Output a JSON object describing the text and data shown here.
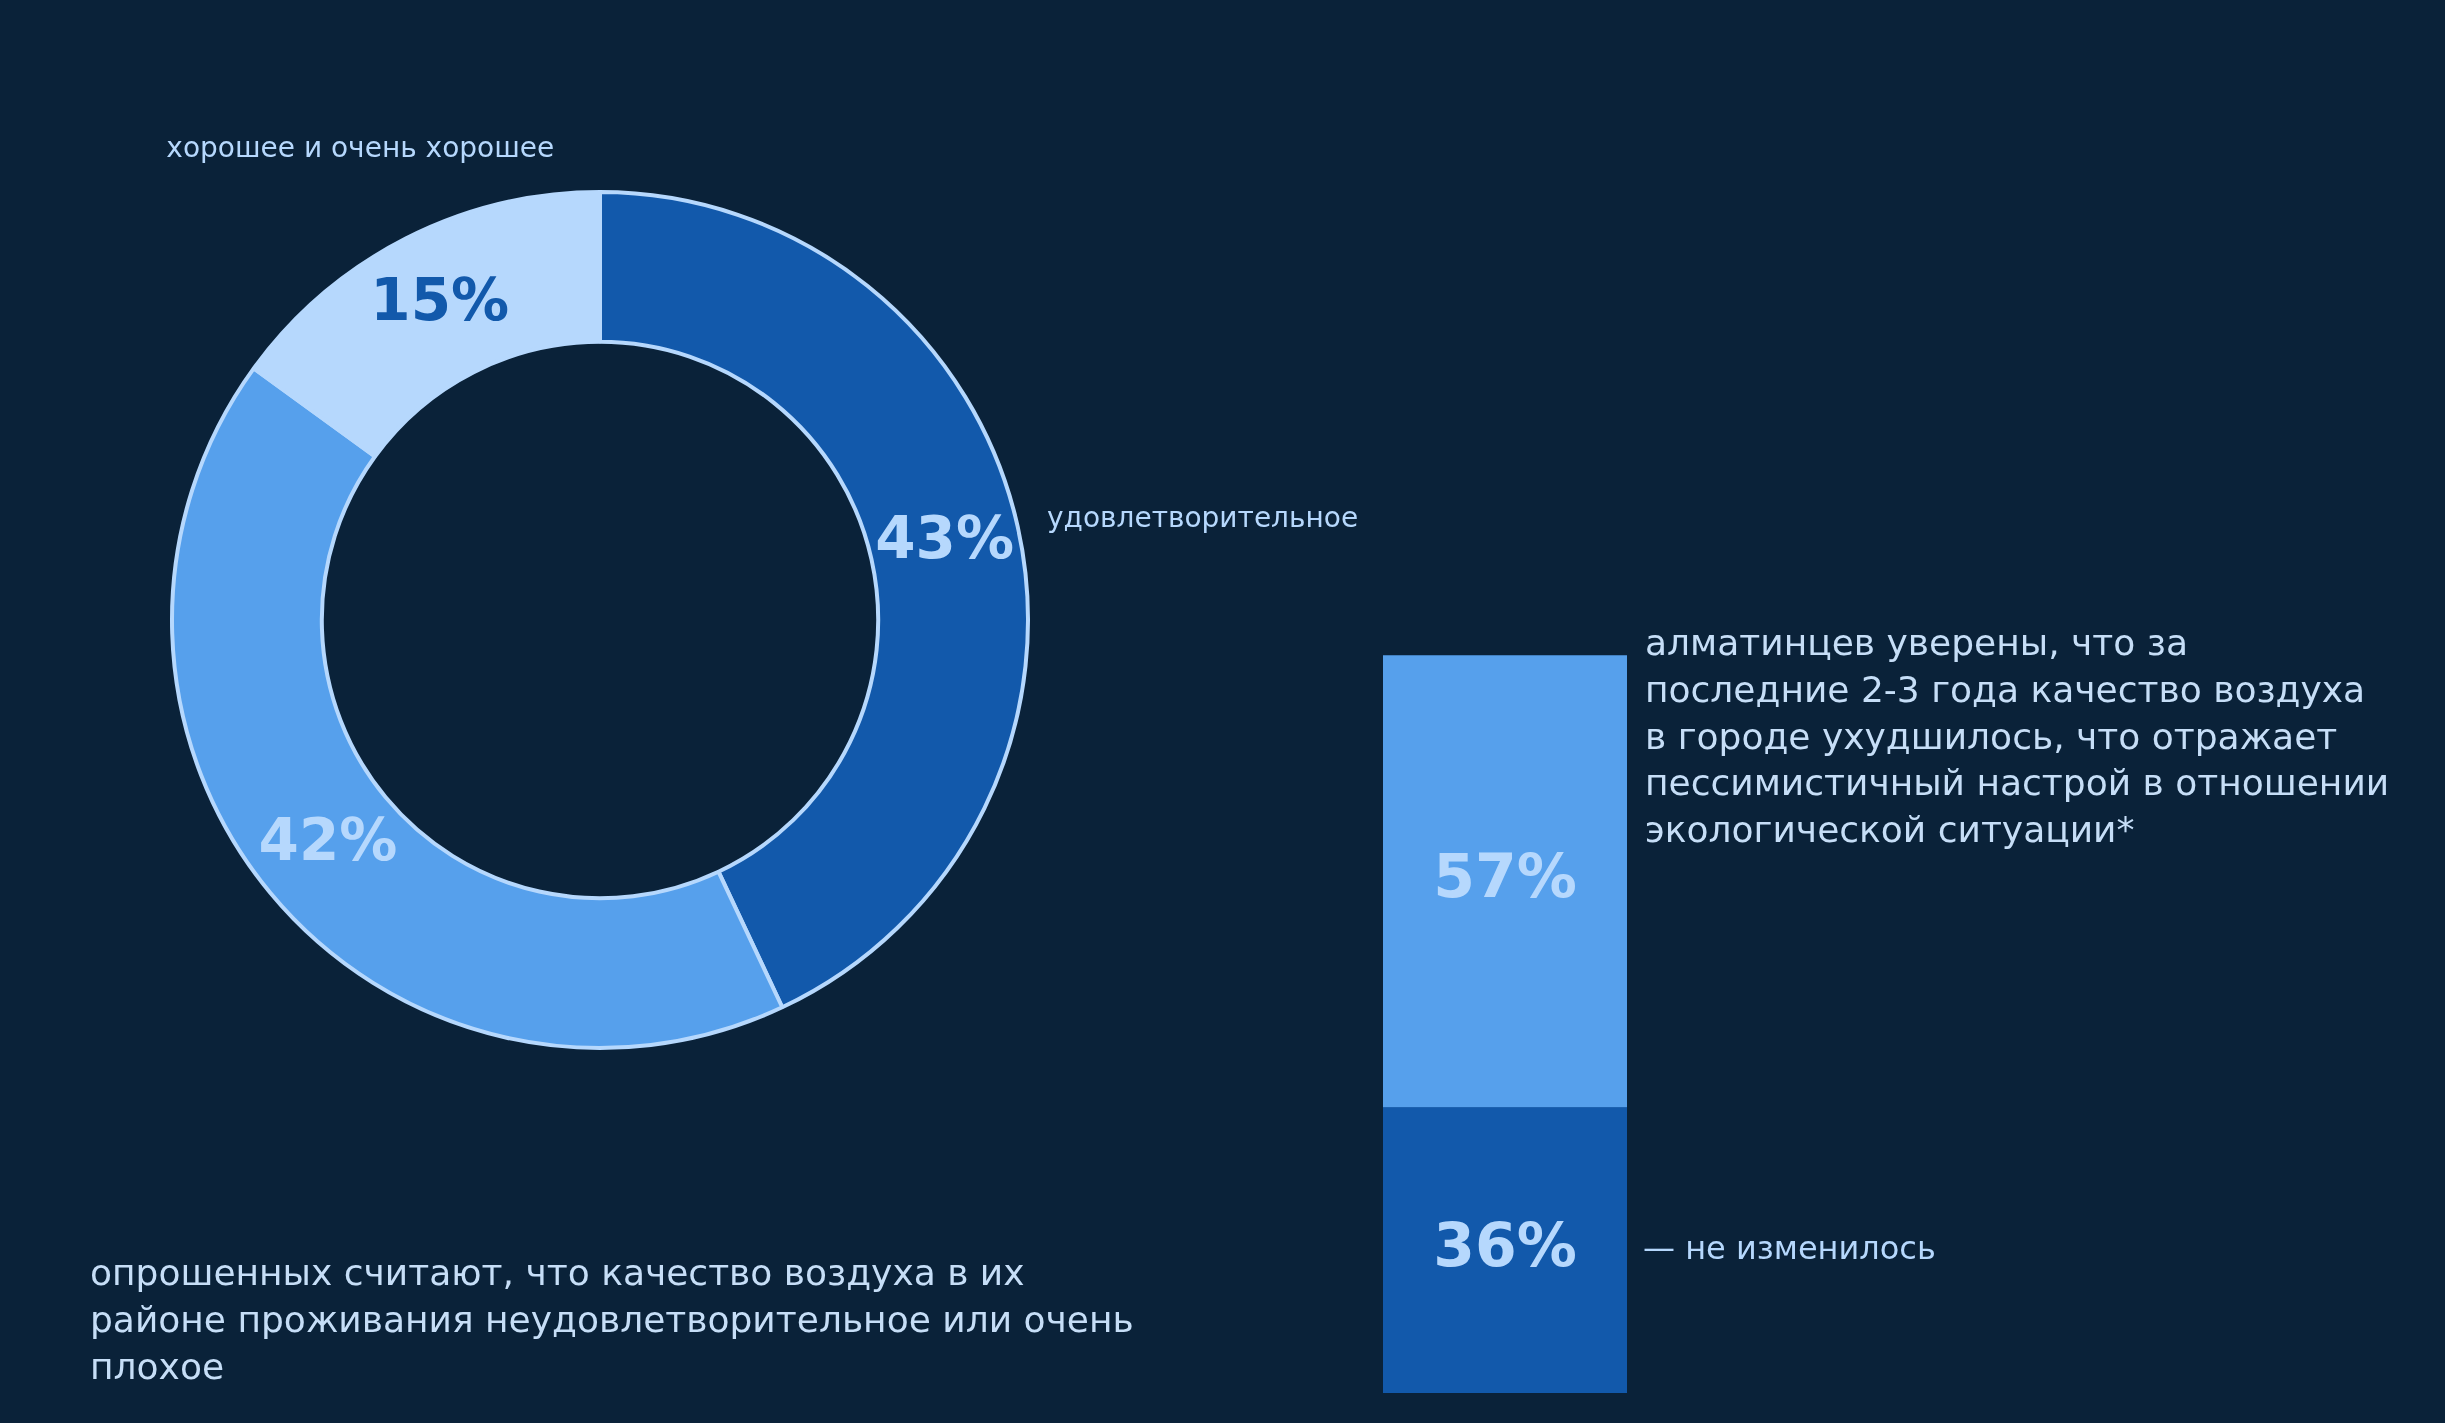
{
  "chart_data": [
    {
      "type": "donut",
      "categories": [
        "удовлетворительное",
        null,
        "хорошее и очень хорошее"
      ],
      "values": [
        43,
        42,
        15
      ],
      "value_labels": [
        "43%",
        "42%",
        "15%"
      ],
      "colors": [
        "#1259ab",
        "#56a0ec",
        "#b6d8fd"
      ],
      "legend": false,
      "annotations": [
        "опрошенных считают, что качество воздуха в их районе проживания неудовлетворительное или очень плохое"
      ]
    },
    {
      "type": "bar",
      "stacked": true,
      "categories": [
        null
      ],
      "legend": false,
      "series": [
        {
          "name": "— не изменилось",
          "color": "#1259ab",
          "values": [
            36
          ],
          "value_labels": [
            "36%"
          ]
        },
        {
          "color": "#56a0ec",
          "values": [
            57
          ],
          "value_labels": [
            "57%"
          ]
        }
      ],
      "annotations": [
        "алматинцев уверены, что за последние 2-3 года качество воздуха в городе ухудшилось, что отражает пессимистичный настрой в отношении экологической ситуации*"
      ]
    }
  ]
}
